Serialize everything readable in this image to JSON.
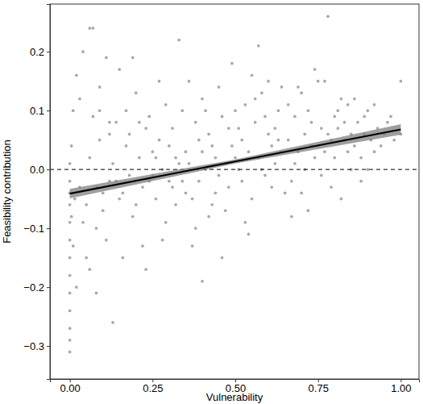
{
  "chart_data": {
    "type": "scatter",
    "x_label": "Vulnerability",
    "y_label": "Feasibility contribution",
    "xlim": [
      -0.06,
      1.055
    ],
    "ylim": [
      -0.356,
      0.281
    ],
    "xticks": [
      {
        "value": 0,
        "label": "0.00"
      },
      {
        "value": 0.25,
        "label": "0.25"
      },
      {
        "value": 0.5,
        "label": "0.50"
      },
      {
        "value": 0.75,
        "label": "0.75"
      },
      {
        "value": 1,
        "label": "1.00"
      }
    ],
    "yticks": [
      {
        "value": -0.3,
        "label": "−0.3"
      },
      {
        "value": -0.2,
        "label": "−0.2"
      },
      {
        "value": -0.1,
        "label": "−0.1"
      },
      {
        "value": 0,
        "label": "0.0"
      },
      {
        "value": 0.1,
        "label": "0.1"
      },
      {
        "value": 0.2,
        "label": "0.2"
      }
    ],
    "grid": false,
    "series": [
      {
        "type": "scatter",
        "marker": "circle",
        "color": "#a9a9a9",
        "x": [
          0,
          0,
          0,
          0,
          0,
          0,
          0,
          0,
          0,
          0,
          0,
          0,
          0,
          0.005,
          0.005,
          0.01,
          0.01,
          0.015,
          0.02,
          0.02,
          0.03,
          0.04,
          0.05,
          0.06,
          0.07,
          0.08,
          0.09,
          0.1,
          0.11,
          0.12,
          0.03,
          0.05,
          0.06,
          0.08,
          0.09,
          0.1,
          0.12,
          0.13,
          0.14,
          0.15,
          0.04,
          0.06,
          0.07,
          0.09,
          0.11,
          0.12,
          0.13,
          0.14,
          0.15,
          0.08,
          0.16,
          0.17,
          0.18,
          0.19,
          0.2,
          0.21,
          0.22,
          0.23,
          0.24,
          0.25,
          0.16,
          0.18,
          0.2,
          0.22,
          0.24,
          0.26,
          0.27,
          0.28,
          0.29,
          0.3,
          0.17,
          0.19,
          0.21,
          0.23,
          0.25,
          0.27,
          0.29,
          0.31,
          0.32,
          0.33,
          0.26,
          0.28,
          0.3,
          0.31,
          0.32,
          0.33,
          0.34,
          0.35,
          0.34,
          0.35,
          0.36,
          0.37,
          0.38,
          0.39,
          0.4,
          0.41,
          0.42,
          0.43,
          0.44,
          0.45,
          0.36,
          0.38,
          0.4,
          0.42,
          0.44,
          0.46,
          0.47,
          0.48,
          0.49,
          0.5,
          0.37,
          0.39,
          0.41,
          0.43,
          0.45,
          0.47,
          0.49,
          0.51,
          0.52,
          0.53,
          0.51,
          0.52,
          0.54,
          0.55,
          0.56,
          0.57,
          0.58,
          0.59,
          0.6,
          0.61,
          0.53,
          0.55,
          0.57,
          0.59,
          0.61,
          0.62,
          0.63,
          0.64,
          0.65,
          0.62,
          0.4,
          0.46,
          0.48,
          0.5,
          0.54,
          0.56,
          0.58,
          0.6,
          0.63,
          0.64,
          0.66,
          0.67,
          0.68,
          0.69,
          0.7,
          0.71,
          0.72,
          0.73,
          0.74,
          0.75,
          0.66,
          0.68,
          0.7,
          0.72,
          0.74,
          0.76,
          0.77,
          0.78,
          0.79,
          0.8,
          0.67,
          0.69,
          0.71,
          0.73,
          0.75,
          0.77,
          0.79,
          0.81,
          0.82,
          0.83,
          0.76,
          0.78,
          0.8,
          0.81,
          0.82,
          0.83,
          0.84,
          0.85,
          0.84,
          0.85,
          0.86,
          0.87,
          0.88,
          0.89,
          0.9,
          0.91,
          0.92,
          0.93,
          0.95,
          0.97,
          0.86,
          0.88,
          0.89,
          0.9,
          0.92,
          0.94,
          0.96,
          0.98,
          1,
          1
        ],
        "values": [
          -0.31,
          -0.29,
          -0.27,
          -0.24,
          -0.21,
          -0.18,
          -0.15,
          -0.12,
          -0.09,
          -0.06,
          -0.04,
          -0.02,
          0.01,
          -0.08,
          0.04,
          -0.13,
          0.1,
          -0.05,
          0.16,
          -0.2,
          -0.03,
          0.2,
          -0.06,
          0.24,
          0.09,
          -0.1,
          0.05,
          -0.04,
          0.19,
          -0.02,
          0.12,
          -0.15,
          0.02,
          -0.03,
          0.14,
          -0.07,
          0.06,
          -0.26,
          0.08,
          -0.05,
          -0.09,
          -0.17,
          0.24,
          0.1,
          -0.12,
          0.08,
          0.01,
          -0.02,
          0.17,
          -0.21,
          -0.04,
          0.1,
          -0.01,
          0.19,
          -0.06,
          0.02,
          -0.13,
          0.07,
          -0.02,
          0.03,
          -0.15,
          0.06,
          0.13,
          -0.03,
          0.09,
          -0.05,
          0.15,
          0,
          -0.09,
          0.04,
          0.04,
          -0.08,
          0.08,
          -0.17,
          -0.01,
          0.05,
          0.11,
          -0.03,
          0.02,
          0.22,
          0.02,
          -0.12,
          -0.02,
          0.07,
          -0.06,
          0.01,
          0.1,
          -0.04,
          -0.02,
          0.03,
          0.01,
          -0.05,
          0.08,
          -0.02,
          0.12,
          0,
          -0.08,
          0.04,
          0.02,
          -0.01,
          0.15,
          -0.1,
          0.03,
          0.06,
          -0.04,
          0.09,
          0.01,
          -0.03,
          0.18,
          0.02,
          -0.13,
          0.05,
          0.1,
          -0.06,
          0.14,
          -0.07,
          0.04,
          0.07,
          -0.02,
          0.11,
          0,
          0.05,
          0.03,
          -0.05,
          0.08,
          0.02,
          0.13,
          -0.01,
          0.06,
          0.04,
          -0.09,
          0.16,
          0.21,
          0.09,
          -0.03,
          0.01,
          0.1,
          0.03,
          -0.04,
          0.07,
          -0.19,
          -0.15,
          0.07,
          0.1,
          -0.11,
          0.12,
          0,
          0.15,
          0.05,
          0.14,
          0.05,
          -0.02,
          0.09,
          0.03,
          0.13,
          0.06,
          -0.07,
          0.08,
          0.17,
          0.04,
          0.11,
          0.01,
          -0.04,
          0.1,
          0.02,
          0.07,
          0.15,
          0.26,
          0.05,
          0.09,
          -0.08,
          0.14,
          0,
          0.04,
          0.15,
          0.03,
          -0.03,
          0.07,
          0.12,
          0.05,
          -0.01,
          0.06,
          0.02,
          0.1,
          -0.05,
          0.08,
          0.03,
          0.06,
          0.11,
          0,
          0.04,
          0.08,
          0.02,
          0.06,
          0.1,
          0.05,
          0.03,
          0.07,
          0.06,
          0.09,
          0.12,
          -0.02,
          0.09,
          0,
          0.11,
          0.04,
          0.08,
          0.05,
          0.15,
          0.06
        ]
      },
      {
        "type": "line",
        "line_style": "dashed",
        "color": "#000000",
        "x": [
          -0.06,
          1.055
        ],
        "values": [
          0,
          0
        ]
      },
      {
        "type": "line",
        "line_style": "solid",
        "color": "#000000",
        "x": [
          0,
          0.5,
          1
        ],
        "values": [
          -0.041,
          0.0135,
          0.068
        ],
        "lower": [
          -0.049,
          0.01,
          0.059
        ],
        "upper": [
          -0.033,
          0.017,
          0.077
        ]
      }
    ]
  }
}
